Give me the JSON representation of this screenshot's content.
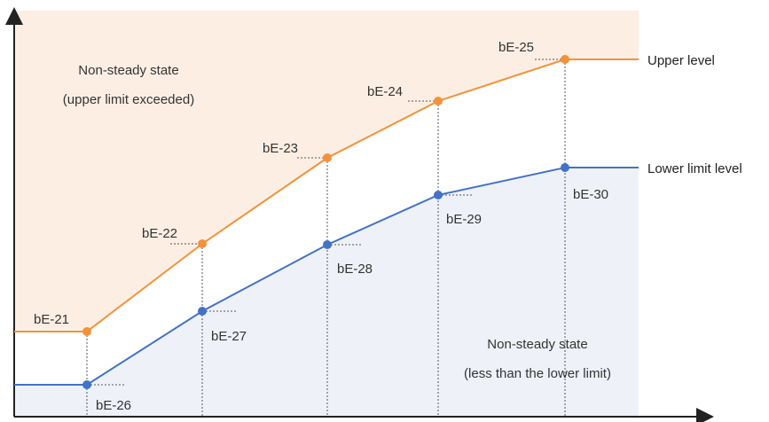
{
  "regions": {
    "upper": {
      "line1": "Non-steady state",
      "line2": "(upper limit exceeded)"
    },
    "lower": {
      "line1": "Non-steady state",
      "line2": "(less than the lower limit)"
    }
  },
  "levels": {
    "upper": "Upper level",
    "lower": "Lower limit level"
  },
  "upper_points": [
    "bE-21",
    "bE-22",
    "bE-23",
    "bE-24",
    "bE-25"
  ],
  "lower_points": [
    "bE-26",
    "bE-27",
    "bE-28",
    "bE-29",
    "bE-30"
  ],
  "colors": {
    "upper_line": "#f2923a",
    "lower_line": "#4472c4",
    "upper_fill": "#fdeee3",
    "lower_fill": "#eef2f8",
    "axis": "#222222",
    "guide": "#555555"
  }
}
